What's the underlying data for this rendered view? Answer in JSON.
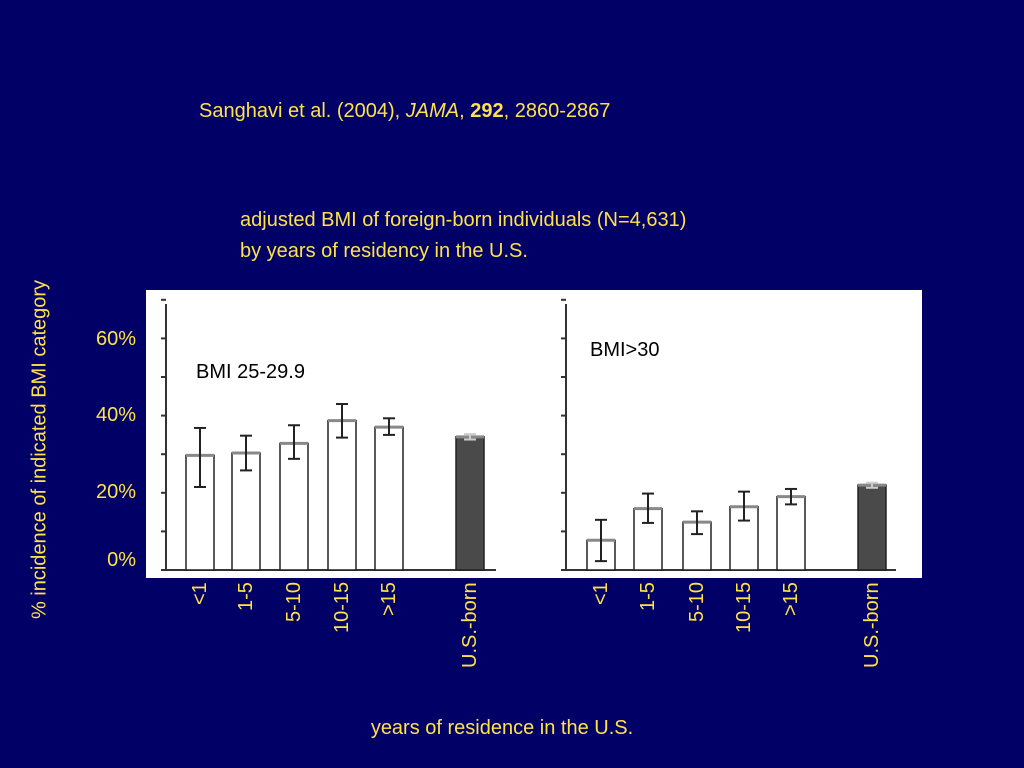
{
  "citation": {
    "prefix": "Sanghavi et al. (2004), ",
    "journal": "JAMA",
    "sep1": ", ",
    "volume": "292",
    "pages": ", 2860-2867"
  },
  "colors": {
    "background": "#000066",
    "text": "#FFE24A",
    "plot_background": "#ffffff",
    "us_born_bar": "#4a4a4a",
    "foreign_bar": "#ffffff"
  },
  "chart_data": [
    {
      "type": "bar",
      "title": "adjusted BMI of foreign-born individuals (N=4,631)",
      "subtitle": "by years of residency in the U.S.",
      "panel_label": "BMI 25-29.9",
      "xlabel": "years of residence in the U.S.",
      "ylabel": "% incidence of indicated BMI category",
      "yticks": [
        "60%",
        "40%",
        "20%",
        "0%"
      ],
      "ylim": [
        0,
        70
      ],
      "categories": [
        "<1",
        "1-5",
        "5-10",
        "10-15",
        ">15",
        "U.S.-born"
      ],
      "values": [
        29.7,
        30.3,
        32.8,
        38.7,
        37.0,
        34.5
      ],
      "error_low": [
        21.5,
        25.8,
        28.8,
        34.3,
        35.0,
        33.8
      ],
      "error_high": [
        36.8,
        34.8,
        37.5,
        43.0,
        39.3,
        35.2
      ],
      "grid": false
    },
    {
      "type": "bar",
      "panel_label": "BMI>30",
      "ylim": [
        0,
        70
      ],
      "categories": [
        "<1",
        "1-5",
        "5-10",
        "10-15",
        ">15",
        "U.S.-born"
      ],
      "values": [
        7.7,
        15.9,
        12.4,
        16.4,
        19.0,
        22.0
      ],
      "error_low": [
        2.3,
        12.2,
        9.3,
        12.8,
        17.0,
        21.3
      ],
      "error_high": [
        13.0,
        19.8,
        15.2,
        20.3,
        21.0,
        22.6
      ],
      "grid": false
    }
  ]
}
